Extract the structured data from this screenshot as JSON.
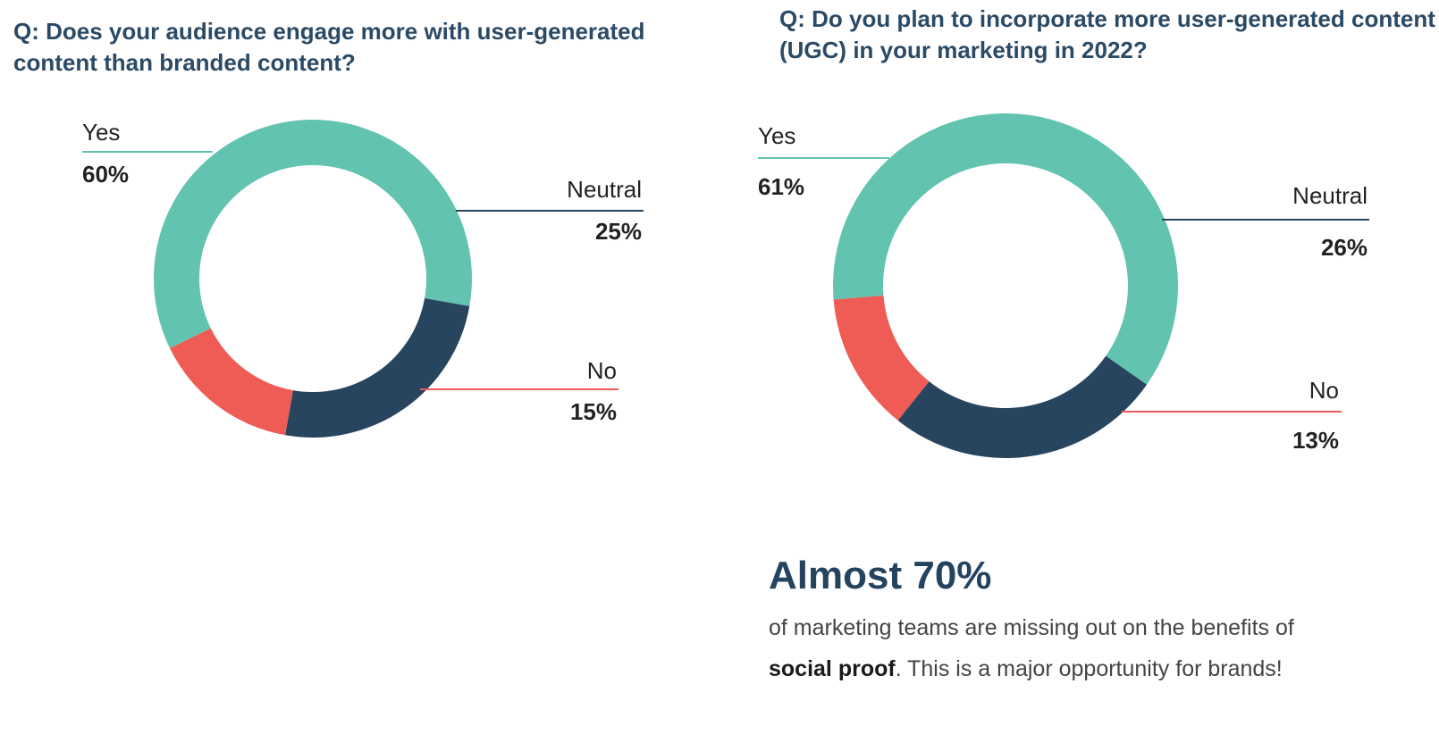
{
  "chart_data": [
    {
      "type": "donut",
      "title": "Q: Does your audience engage more with user-generated content than branded content?",
      "slices": [
        {
          "label": "Yes",
          "value": 60,
          "value_text": "60%",
          "color": "#62c3b0"
        },
        {
          "label": "Neutral",
          "value": 25,
          "value_text": "25%",
          "color": "#27455f"
        },
        {
          "label": "No",
          "value": 15,
          "value_text": "15%",
          "color": "#ef5b55"
        }
      ]
    },
    {
      "type": "donut",
      "title": "Q: Do you plan to incorporate more user-generated content (UGC) in your marketing in 2022?",
      "slices": [
        {
          "label": "Yes",
          "value": 61,
          "value_text": "61%",
          "color": "#62c3b0"
        },
        {
          "label": "Neutral",
          "value": 26,
          "value_text": "26%",
          "color": "#27455f"
        },
        {
          "label": "No",
          "value": 13,
          "value_text": "13%",
          "color": "#ef5b55"
        }
      ]
    }
  ],
  "callout": {
    "headline": "Almost 70%",
    "body_before": "of marketing teams are missing out on the benefits of ",
    "body_bold": "social proof",
    "body_after": ". This is a major opportunity for brands!"
  }
}
